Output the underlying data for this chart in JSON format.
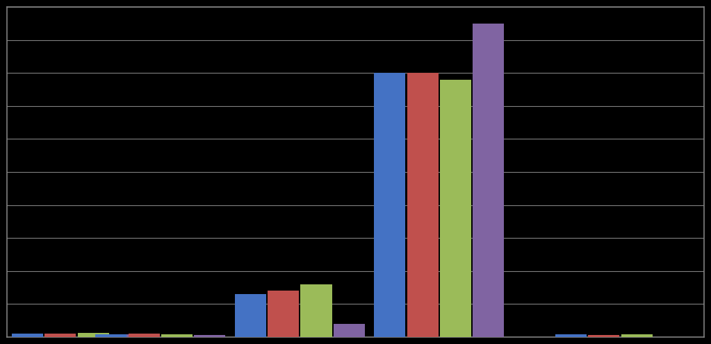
{
  "n_series": 4,
  "series_colors": [
    "#4472C4",
    "#C0504D",
    "#9BBB59",
    "#8064A2"
  ],
  "values": [
    [
      1.0,
      1.0,
      1.2,
      0.8
    ],
    [
      0.8,
      1.0,
      0.9,
      0.7
    ],
    [
      13,
      14,
      16,
      4
    ],
    [
      80,
      80,
      78,
      95
    ],
    [
      0.8,
      0.7,
      0.8,
      0.0
    ]
  ],
  "background_color": "#000000",
  "plot_area_color": "#000000",
  "gridline_color": "#808080",
  "bar_width": 0.045,
  "group_centers": [
    0.1,
    0.22,
    0.42,
    0.62,
    0.88
  ],
  "xlim": [
    0.0,
    1.0
  ],
  "ylim": [
    0,
    100
  ],
  "n_gridlines": 10,
  "fig_width": 10.23,
  "fig_height": 4.96,
  "spine_color": "#808080",
  "spine_linewidth": 1.2,
  "gridline_linewidth": 0.8
}
